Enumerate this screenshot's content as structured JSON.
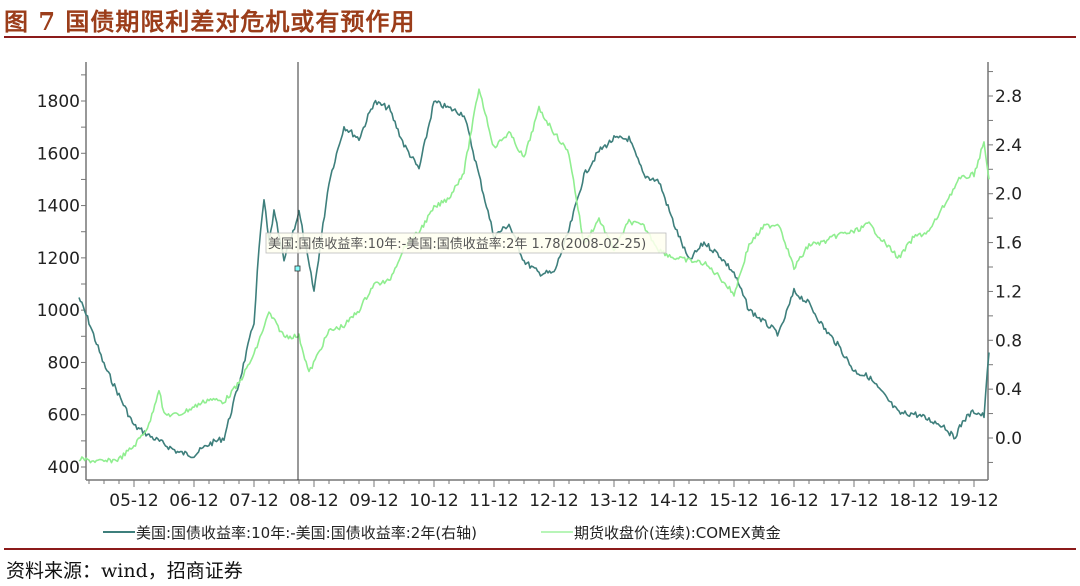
{
  "header": {
    "title": "图 7  国债期限利差对危机或有预作用"
  },
  "footer": {
    "source": "资料来源：wind，招商证券"
  },
  "colors": {
    "title": "#9b3d1a",
    "rule": "#8b1a1a",
    "spread": "#3e7f7c",
    "gold": "#90ee90"
  },
  "tooltip": {
    "text": "美国:国债收益率:10年:-美国:国债收益率:2年 1.78(2008-02-25)",
    "series": "美国:国债收益率:10年:-美国:国债收益率:2年",
    "value": 1.78,
    "date": "2008-02-25"
  },
  "legend": {
    "spread_label": "美国:国债收益率:10年:-美国:国债收益率:2年(右轴)",
    "gold_label": "期货收盘价(连续):COMEX黄金"
  },
  "chart_data": {
    "type": "line",
    "title": "图 7  国债期限利差对危机或有预作用",
    "xlabel": "",
    "ylabel": "",
    "y2label": "",
    "x_ticks": [
      "05-12",
      "06-12",
      "07-12",
      "08-12",
      "09-12",
      "10-12",
      "11-12",
      "12-12",
      "13-12",
      "14-12",
      "15-12",
      "16-12",
      "17-12",
      "18-12",
      "19-12"
    ],
    "y_left_ticks": [
      400,
      600,
      800,
      1000,
      1200,
      1400,
      1600,
      1800
    ],
    "y_left_range": [
      350,
      1900
    ],
    "y_right_ticks": [
      0.0,
      0.4,
      0.8,
      1.2,
      1.6,
      2.0,
      2.4,
      2.8
    ],
    "y_right_range": [
      -0.25,
      3.0
    ],
    "grid": false,
    "legend_position": "bottom",
    "series": [
      {
        "name": "美国:国债收益率:10年:-美国:国债收益率:2年(右轴)",
        "axis": "right",
        "color": "#3e7f7c",
        "x": [
          "2005-01",
          "2005-03",
          "2005-06",
          "2005-09",
          "2005-12",
          "2006-03",
          "2006-06",
          "2006-09",
          "2006-12",
          "2007-03",
          "2007-06",
          "2007-09",
          "2007-12",
          "2008-01",
          "2008-02",
          "2008-03",
          "2008-04",
          "2008-06",
          "2008-09",
          "2008-12",
          "2009-03",
          "2009-06",
          "2009-09",
          "2009-12",
          "2010-03",
          "2010-06",
          "2010-09",
          "2010-12",
          "2011-03",
          "2011-06",
          "2011-09",
          "2011-12",
          "2012-03",
          "2012-06",
          "2012-09",
          "2012-12",
          "2013-03",
          "2013-06",
          "2013-09",
          "2013-12",
          "2014-03",
          "2014-06",
          "2014-09",
          "2014-12",
          "2015-03",
          "2015-06",
          "2015-09",
          "2015-12",
          "2016-03",
          "2016-06",
          "2016-09",
          "2016-12",
          "2017-03",
          "2017-06",
          "2017-09",
          "2017-12",
          "2018-03",
          "2018-06",
          "2018-09",
          "2018-12",
          "2019-03",
          "2019-06",
          "2019-08",
          "2019-10",
          "2019-12",
          "2020-02",
          "2020-03"
        ],
        "values": [
          1.15,
          0.95,
          0.6,
          0.35,
          0.1,
          0.02,
          -0.05,
          -0.12,
          -0.14,
          -0.05,
          0.0,
          0.45,
          0.95,
          1.55,
          1.95,
          1.6,
          1.85,
          1.45,
          1.85,
          1.2,
          2.1,
          2.55,
          2.45,
          2.75,
          2.7,
          2.4,
          2.2,
          2.75,
          2.7,
          2.65,
          2.15,
          1.65,
          1.75,
          1.45,
          1.35,
          1.35,
          1.7,
          2.15,
          2.35,
          2.45,
          2.45,
          2.15,
          2.1,
          1.75,
          1.45,
          1.6,
          1.5,
          1.35,
          1.05,
          0.95,
          0.85,
          1.2,
          1.1,
          0.9,
          0.75,
          0.55,
          0.5,
          0.35,
          0.2,
          0.2,
          0.15,
          0.1,
          0.0,
          0.15,
          0.22,
          0.18,
          0.7
        ]
      },
      {
        "name": "期货收盘价(连续):COMEX黄金",
        "axis": "left",
        "color": "#90ee90",
        "x": [
          "2005-01",
          "2005-03",
          "2005-06",
          "2005-09",
          "2005-12",
          "2006-03",
          "2006-05",
          "2006-06",
          "2006-09",
          "2006-12",
          "2007-03",
          "2007-06",
          "2007-09",
          "2007-12",
          "2008-03",
          "2008-06",
          "2008-09",
          "2008-11",
          "2009-03",
          "2009-06",
          "2009-09",
          "2009-12",
          "2010-03",
          "2010-06",
          "2010-09",
          "2010-12",
          "2011-03",
          "2011-06",
          "2011-09",
          "2011-12",
          "2012-03",
          "2012-06",
          "2012-09",
          "2012-12",
          "2013-03",
          "2013-06",
          "2013-09",
          "2013-12",
          "2014-03",
          "2014-06",
          "2014-09",
          "2014-12",
          "2015-03",
          "2015-06",
          "2015-09",
          "2015-12",
          "2016-03",
          "2016-06",
          "2016-09",
          "2016-12",
          "2017-03",
          "2017-06",
          "2017-09",
          "2017-12",
          "2018-03",
          "2018-06",
          "2018-09",
          "2018-12",
          "2019-03",
          "2019-06",
          "2019-09",
          "2019-12",
          "2020-02",
          "2020-03"
        ],
        "values": [
          430,
          425,
          420,
          430,
          480,
          560,
          700,
          600,
          600,
          630,
          660,
          650,
          720,
          830,
          990,
          900,
          900,
          760,
          920,
          940,
          1000,
          1100,
          1110,
          1240,
          1300,
          1390,
          1430,
          1530,
          1850,
          1620,
          1680,
          1580,
          1770,
          1680,
          1600,
          1250,
          1350,
          1230,
          1340,
          1320,
          1230,
          1200,
          1190,
          1180,
          1130,
          1060,
          1250,
          1320,
          1330,
          1160,
          1250,
          1260,
          1290,
          1300,
          1330,
          1260,
          1200,
          1280,
          1300,
          1400,
          1500,
          1520,
          1640,
          1500
        ]
      }
    ]
  }
}
